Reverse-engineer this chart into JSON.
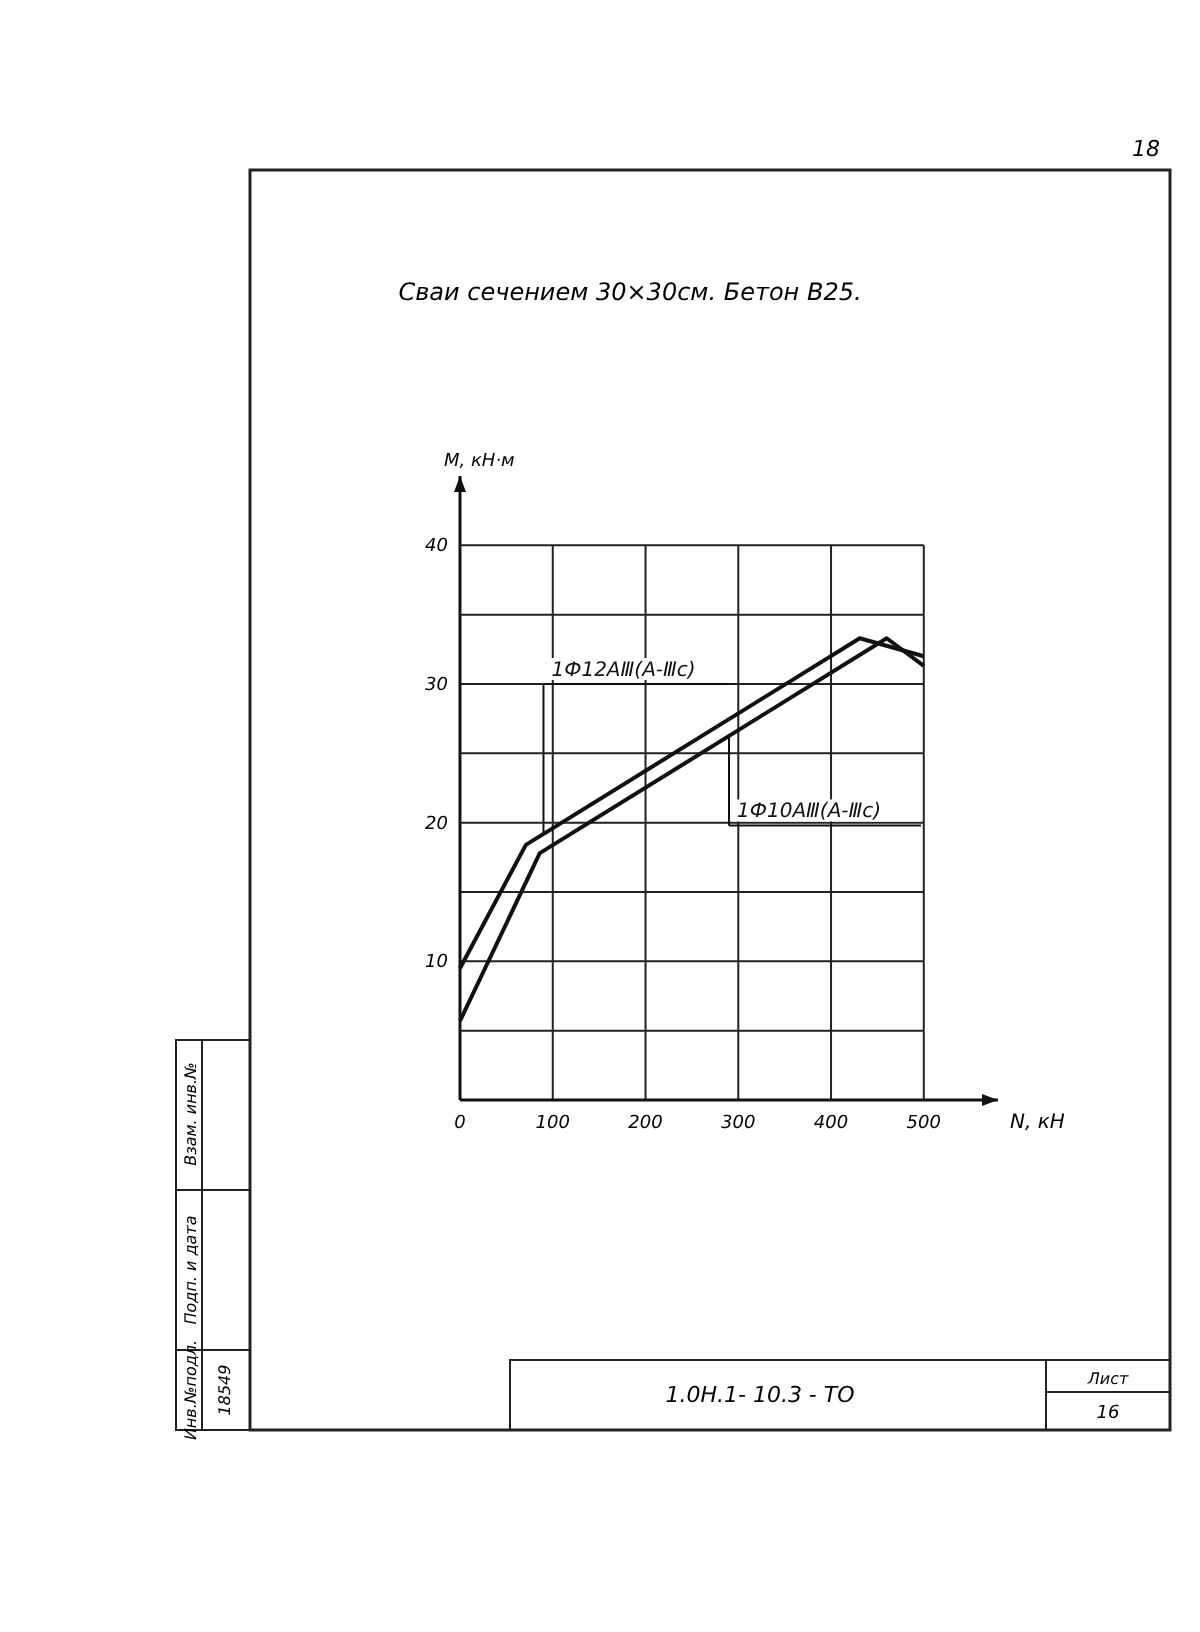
{
  "chart_data": {
    "type": "line",
    "title": "Сваи сечением 30×30см. Бетон В25.",
    "xlabel": "N, кН",
    "ylabel": "M, кН·м",
    "series": [
      {
        "name": "1Ф12АⅢ(А-Ⅲс)",
        "color": "#111111",
        "x": [
          0,
          71,
          431,
          500
        ],
        "values": [
          9.5,
          18.4,
          33.3,
          32.0
        ]
      },
      {
        "name": "1Ф10АⅢ(А-Ⅲс)",
        "color": "#111111",
        "x": [
          0,
          86,
          460,
          500
        ],
        "values": [
          5.7,
          17.8,
          33.3,
          31.3
        ]
      }
    ],
    "xlim": [
      0,
      580
    ],
    "ylim": [
      0,
      45
    ],
    "xticks": [
      0,
      100,
      200,
      300,
      400,
      500
    ],
    "yticks": [
      {
        "value": 5,
        "label": null
      },
      10,
      {
        "value": 15,
        "label": null
      },
      20,
      {
        "value": 25,
        "label": null
      },
      30,
      {
        "value": 35,
        "label": null
      },
      40
    ],
    "grid": true,
    "legend": false,
    "marker": "none",
    "line_style": "solid",
    "annotations": [
      "18",
      "1.0Н.1- 10.3 - ТО",
      "Лист",
      "16",
      "Инв.№подл.",
      "Подп. и дата",
      "Взам. инв.№",
      "18549"
    ]
  }
}
